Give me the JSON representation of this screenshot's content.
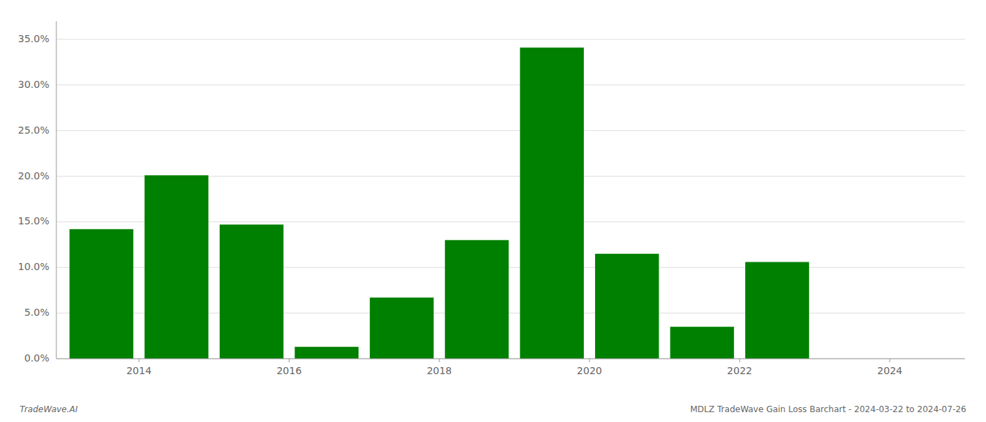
{
  "chart_data": {
    "type": "bar",
    "x": [
      2013,
      2014,
      2015,
      2016,
      2017,
      2018,
      2019,
      2020,
      2021,
      2022,
      2023
    ],
    "values": [
      0.142,
      0.201,
      0.147,
      0.013,
      0.067,
      0.13,
      0.341,
      0.115,
      0.035,
      0.106,
      0.0
    ],
    "color": "#008000",
    "xlim": [
      2012.4,
      2024.5
    ],
    "xticks": [
      {
        "value": 2013.5,
        "label": "2014"
      },
      {
        "value": 2015.5,
        "label": "2016"
      },
      {
        "value": 2017.5,
        "label": "2018"
      },
      {
        "value": 2019.5,
        "label": "2020"
      },
      {
        "value": 2021.5,
        "label": "2022"
      },
      {
        "value": 2023.5,
        "label": "2024"
      }
    ],
    "ylim": [
      0,
      0.37
    ],
    "yticks": [
      {
        "value": 0.0,
        "label": "0.0%"
      },
      {
        "value": 0.05,
        "label": "5.0%"
      },
      {
        "value": 0.1,
        "label": "10.0%"
      },
      {
        "value": 0.15,
        "label": "15.0%"
      },
      {
        "value": 0.2,
        "label": "20.0%"
      },
      {
        "value": 0.25,
        "label": "25.0%"
      },
      {
        "value": 0.3,
        "label": "30.0%"
      },
      {
        "value": 0.35,
        "label": "35.0%"
      }
    ],
    "grid": true,
    "annotations": [
      "TradeWave.AI",
      "MDLZ TradeWave Gain Loss Barchart - 2024-03-22 to 2024-07-26"
    ]
  }
}
